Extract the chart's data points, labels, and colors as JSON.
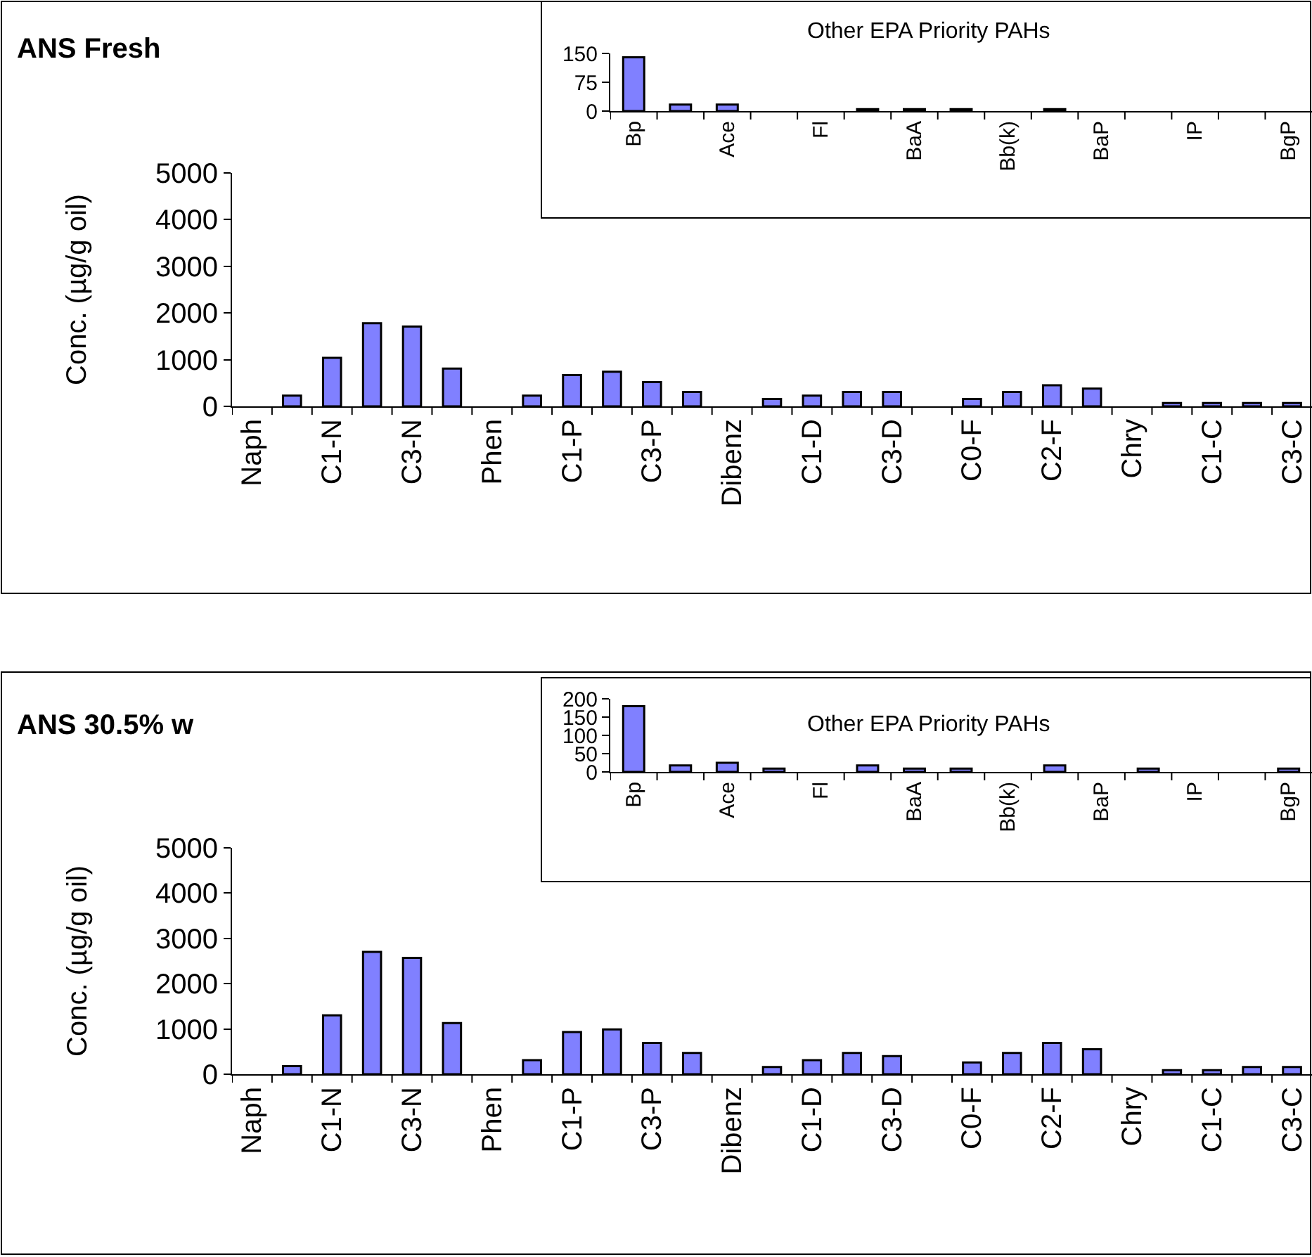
{
  "chart_data": [
    {
      "type": "bar",
      "title": "ANS Fresh",
      "ylabel": "Conc. (µg/g oil)",
      "color": "#8080ff",
      "ylim": [
        0,
        5000
      ],
      "yticks": [
        0,
        1000,
        2000,
        3000,
        4000,
        5000
      ],
      "categories": [
        "Naph",
        null,
        "C1-N",
        null,
        "C3-N",
        null,
        "Phen",
        null,
        "C1-P",
        null,
        "C3-P",
        null,
        "Dibenz",
        null,
        "C1-D",
        null,
        "C3-D",
        null,
        "C0-F",
        null,
        "C2-F",
        null,
        "Chry",
        null,
        "C1-C",
        null,
        "C3-C"
      ],
      "values": [
        null,
        230,
        1040,
        1780,
        1710,
        810,
        null,
        230,
        670,
        740,
        520,
        310,
        null,
        160,
        230,
        310,
        310,
        null,
        160,
        310,
        450,
        380,
        null,
        70,
        70,
        70,
        70
      ]
    },
    {
      "type": "bar",
      "title": "Other EPA Priority PAHs",
      "color": "#8080ff",
      "ylim": [
        0,
        150
      ],
      "yticks": [
        0,
        75,
        150
      ],
      "categories": [
        "Bp",
        null,
        "Ace",
        null,
        "Fl",
        null,
        "BaA",
        null,
        "Bb(k)",
        null,
        "BaP",
        null,
        "IP",
        null,
        "BgP"
      ],
      "values": [
        140,
        17,
        17,
        null,
        null,
        5,
        5,
        5,
        null,
        5,
        null,
        null,
        null,
        null,
        null
      ]
    },
    {
      "type": "bar",
      "title": "ANS 30.5% w",
      "ylabel": "Conc. (µg/g oil)",
      "color": "#8080ff",
      "ylim": [
        0,
        5000
      ],
      "yticks": [
        0,
        1000,
        2000,
        3000,
        4000,
        5000
      ],
      "categories": [
        "Naph",
        null,
        "C1-N",
        null,
        "C3-N",
        null,
        "Phen",
        null,
        "C1-P",
        null,
        "C3-P",
        null,
        "Dibenz",
        null,
        "C1-D",
        null,
        "C3-D",
        null,
        "C0-F",
        null,
        "C2-F",
        null,
        "Chry",
        null,
        "C1-C",
        null,
        "C3-C"
      ],
      "values": [
        null,
        180,
        1300,
        2700,
        2570,
        1130,
        null,
        310,
        930,
        990,
        690,
        470,
        null,
        160,
        310,
        470,
        400,
        null,
        260,
        470,
        690,
        550,
        null,
        90,
        90,
        160,
        160
      ]
    },
    {
      "type": "bar",
      "title": "Other EPA Priority PAHs",
      "color": "#8080ff",
      "ylim": [
        0,
        200
      ],
      "yticks": [
        0,
        50,
        100,
        150,
        200
      ],
      "categories": [
        "Bp",
        null,
        "Ace",
        null,
        "Fl",
        null,
        "BaA",
        null,
        "Bb(k)",
        null,
        "BaP",
        null,
        "IP",
        null,
        "BgP"
      ],
      "values": [
        180,
        18,
        25,
        9,
        null,
        18,
        9,
        9,
        null,
        18,
        null,
        9,
        null,
        null,
        9
      ]
    }
  ]
}
